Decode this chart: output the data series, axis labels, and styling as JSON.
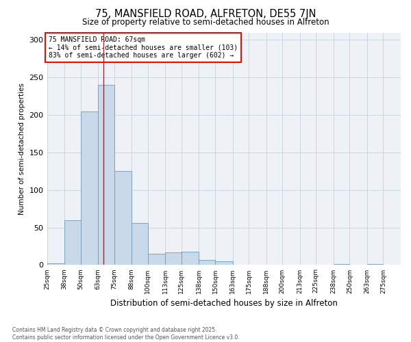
{
  "title": "75, MANSFIELD ROAD, ALFRETON, DE55 7JN",
  "subtitle": "Size of property relative to semi-detached houses in Alfreton",
  "xlabel": "Distribution of semi-detached houses by size in Alfreton",
  "ylabel": "Number of semi-detached properties",
  "annotation_text": "75 MANSFIELD ROAD: 67sqm\n← 14% of semi-detached houses are smaller (103)\n83% of semi-detached houses are larger (602) →",
  "bar_left_edges": [
    25,
    38,
    50,
    63,
    75,
    88,
    100,
    113,
    125,
    138,
    150,
    163,
    175,
    188,
    200,
    213,
    225,
    238,
    250,
    263,
    275
  ],
  "bar_widths": [
    13,
    12,
    13,
    12,
    13,
    12,
    13,
    12,
    13,
    12,
    13,
    12,
    13,
    12,
    13,
    12,
    13,
    12,
    13,
    12,
    13
  ],
  "bar_heights": [
    2,
    60,
    205,
    240,
    125,
    56,
    15,
    17,
    18,
    7,
    5,
    0,
    0,
    0,
    0,
    0,
    0,
    1,
    0,
    1,
    0
  ],
  "bar_color": "#c9d9ea",
  "bar_edge_color": "#7098b8",
  "bar_linewidth": 0.6,
  "vline_x": 67,
  "vline_color": "red",
  "grid_color": "#c8d0dc",
  "bg_color": "#eef2f7",
  "ylim": [
    0,
    310
  ],
  "yticks": [
    0,
    50,
    100,
    150,
    200,
    250,
    300
  ],
  "xlim_left": 25,
  "xlim_right": 288,
  "footnote": "Contains HM Land Registry data © Crown copyright and database right 2025.\nContains public sector information licensed under the Open Government Licence v3.0.",
  "tick_labels": [
    "25sqm",
    "38sqm",
    "50sqm",
    "63sqm",
    "75sqm",
    "88sqm",
    "100sqm",
    "113sqm",
    "125sqm",
    "138sqm",
    "150sqm",
    "163sqm",
    "175sqm",
    "188sqm",
    "200sqm",
    "213sqm",
    "225sqm",
    "238sqm",
    "250sqm",
    "263sqm",
    "275sqm"
  ]
}
